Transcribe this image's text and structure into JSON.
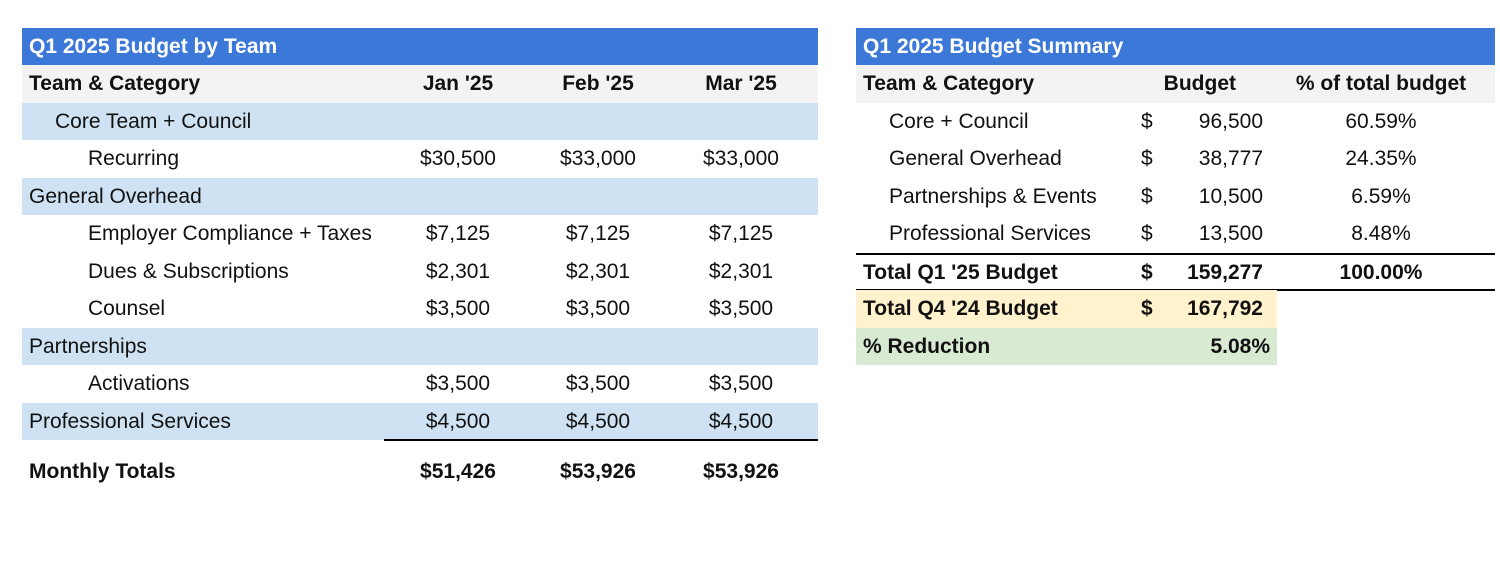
{
  "left": {
    "title": "Q1 2025 Budget by Team",
    "headers": {
      "category": "Team & Category",
      "jan": "Jan '25",
      "feb": "Feb '25",
      "mar": "Mar '25"
    },
    "rows": [
      {
        "label": "Core Team + Council",
        "jan": "",
        "feb": "",
        "mar": ""
      },
      {
        "label": "Recurring",
        "jan": "$30,500",
        "feb": "$33,000",
        "mar": "$33,000"
      },
      {
        "label": "General Overhead",
        "jan": "",
        "feb": "",
        "mar": ""
      },
      {
        "label": "Employer Compliance + Taxes",
        "jan": "$7,125",
        "feb": "$7,125",
        "mar": "$7,125"
      },
      {
        "label": "Dues & Subscriptions",
        "jan": "$2,301",
        "feb": "$2,301",
        "mar": "$2,301"
      },
      {
        "label": "Counsel",
        "jan": "$3,500",
        "feb": "$3,500",
        "mar": "$3,500"
      },
      {
        "label": "Partnerships",
        "jan": "",
        "feb": "",
        "mar": ""
      },
      {
        "label": "Activations",
        "jan": "$3,500",
        "feb": "$3,500",
        "mar": "$3,500"
      },
      {
        "label": "Professional Services",
        "jan": "$4,500",
        "feb": "$4,500",
        "mar": "$4,500"
      }
    ],
    "totals": {
      "label": "Monthly Totals",
      "jan": "$51,426",
      "feb": "$53,926",
      "mar": "$53,926"
    }
  },
  "right": {
    "title": "Q1 2025 Budget Summary",
    "headers": {
      "category": "Team & Category",
      "budget": "Budget",
      "pct": "% of total budget"
    },
    "currency": "$",
    "rows": [
      {
        "label": "Core + Council",
        "amount": "96,500",
        "pct": "60.59%"
      },
      {
        "label": "General Overhead",
        "amount": "38,777",
        "pct": "24.35%"
      },
      {
        "label": "Partnerships & Events",
        "amount": "10,500",
        "pct": "6.59%"
      },
      {
        "label": "Professional Services",
        "amount": "13,500",
        "pct": "8.48%"
      }
    ],
    "total_q1": {
      "label": "Total Q1 '25 Budget",
      "amount": "159,277",
      "pct": "100.00%"
    },
    "total_q4": {
      "label": "Total Q4 '24 Budget",
      "amount": "167,792"
    },
    "reduction": {
      "label": "% Reduction",
      "value": "5.08%"
    }
  },
  "colors": {
    "title_bar": "#3c78d8",
    "header_row": "#f3f3f3",
    "group_row": "#cfe2f3",
    "q4_highlight": "#fff2cc",
    "reduction_highlight": "#d9ead3"
  }
}
